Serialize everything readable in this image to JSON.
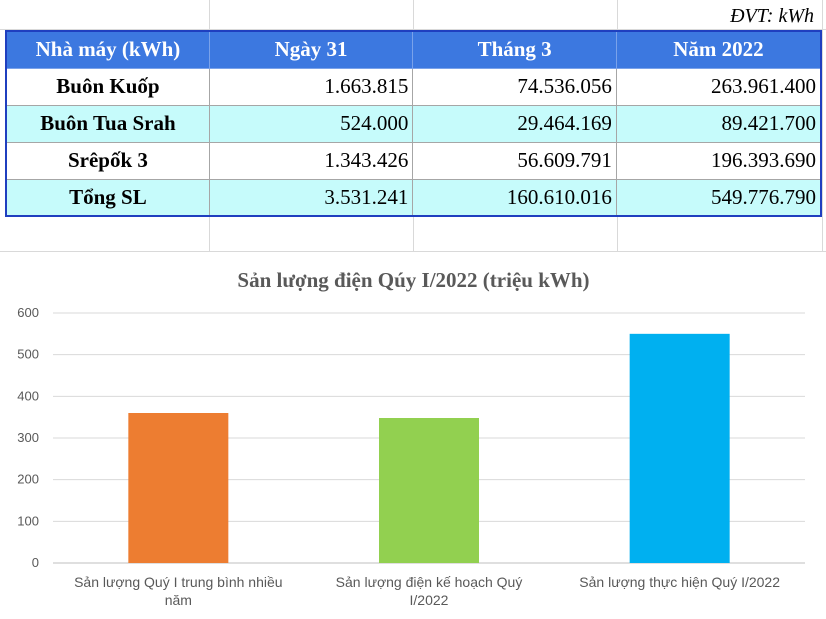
{
  "sheet": {
    "unit_label": "ĐVT: kWh"
  },
  "table": {
    "headers": [
      "Nhà máy (kWh)",
      "Ngày 31",
      "Tháng 3",
      "Năm 2022"
    ],
    "rows": [
      [
        "Buôn Kuốp",
        "1.663.815",
        "74.536.056",
        "263.961.400"
      ],
      [
        "Buôn Tua Srah",
        "524.000",
        "29.464.169",
        "89.421.700"
      ],
      [
        "Srêpốk 3",
        "1.343.426",
        "56.609.791",
        "196.393.690"
      ],
      [
        "Tổng SL",
        "3.531.241",
        "160.610.016",
        "549.776.790"
      ]
    ]
  },
  "colors": {
    "header_bg": "#3c78e0",
    "alt_row_bg": "#c6fbfb",
    "table_border": "#1f3fbf"
  },
  "chart_data": {
    "type": "bar",
    "title": "Sản lượng điện Qúy I/2022 (triệu kWh)",
    "categories": [
      "Sản lượng Quý I trung bình nhiều năm",
      "Sản lượng điện kế hoạch Quý I/2022",
      "Sản lượng thực hiện Quý I/2022"
    ],
    "category_lines": [
      [
        "Sản lượng Quý I trung bình nhiều",
        "năm"
      ],
      [
        "Sản lượng điện kế hoạch Quý",
        "I/2022"
      ],
      [
        "Sản lượng thực hiện Quý I/2022"
      ]
    ],
    "values": [
      360,
      348,
      550
    ],
    "bar_colors": [
      "#ed7d31",
      "#92d050",
      "#00b0f0"
    ],
    "ylim": [
      0,
      600
    ],
    "yticks": [
      0,
      100,
      200,
      300,
      400,
      500,
      600
    ],
    "grid": true,
    "xlabel": "",
    "ylabel": ""
  }
}
